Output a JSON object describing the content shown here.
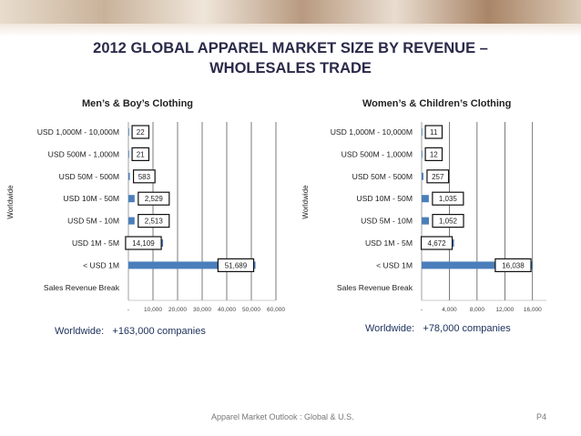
{
  "title_line1": "2012 GLOBAL APPAREL MARKET SIZE BY REVENUE –",
  "title_line2": "WHOLESALES TRADE",
  "footer_text": "Apparel Market Outlook : Global & U.S.",
  "page_number": "P4",
  "chart_data": [
    {
      "type": "bar",
      "orientation": "horizontal",
      "title": "Men’s & Boy’s Clothing",
      "ylabel": "Worldwide",
      "categories": [
        "USD 1,000M - 10,000M",
        "USD 500M - 1,000M",
        "USD 50M - 500M",
        "USD 10M - 50M",
        "USD 5M - 10M",
        "USD 1M - 5M",
        "< USD 1M",
        "Sales Revenue Break"
      ],
      "values": [
        22,
        21,
        583,
        2529,
        2513,
        14109,
        51689,
        null
      ],
      "value_labels": [
        "22",
        "21",
        "583",
        "2,529",
        "2,513",
        "14,109",
        "51,689",
        ""
      ],
      "xlim": [
        0,
        60000
      ],
      "xticks": [
        0,
        10000,
        20000,
        30000,
        40000,
        50000,
        60000
      ],
      "xtick_labels": [
        "-",
        "10,000",
        "20,000",
        "30,000",
        "40,000",
        "50,000",
        "60,000"
      ],
      "summary_label": "Worldwide:",
      "summary_value": "+163,000 companies",
      "bar_color": "#4a7ebb"
    },
    {
      "type": "bar",
      "orientation": "horizontal",
      "title": "Women’s & Children’s Clothing",
      "ylabel": "Worldwide",
      "categories": [
        "USD 1,000M - 10,000M",
        "USD 500M - 1,000M",
        "USD 50M - 500M",
        "USD 10M - 50M",
        "USD 5M - 10M",
        "USD 1M - 5M",
        "< USD 1M",
        "Sales Revenue Break"
      ],
      "values": [
        11,
        12,
        257,
        1035,
        1052,
        4672,
        16038,
        null
      ],
      "value_labels": [
        "11",
        "12",
        "257",
        "1,035",
        "1,052",
        "4,672",
        "16,038",
        ""
      ],
      "xlim": [
        0,
        18000
      ],
      "xticks": [
        0,
        4000,
        8000,
        12000,
        16000
      ],
      "xtick_labels": [
        "-",
        "4,000",
        "8,000",
        "12,000",
        "16,000"
      ],
      "summary_label": "Worldwide:",
      "summary_value": "+78,000 companies",
      "bar_color": "#4a7ebb"
    }
  ]
}
